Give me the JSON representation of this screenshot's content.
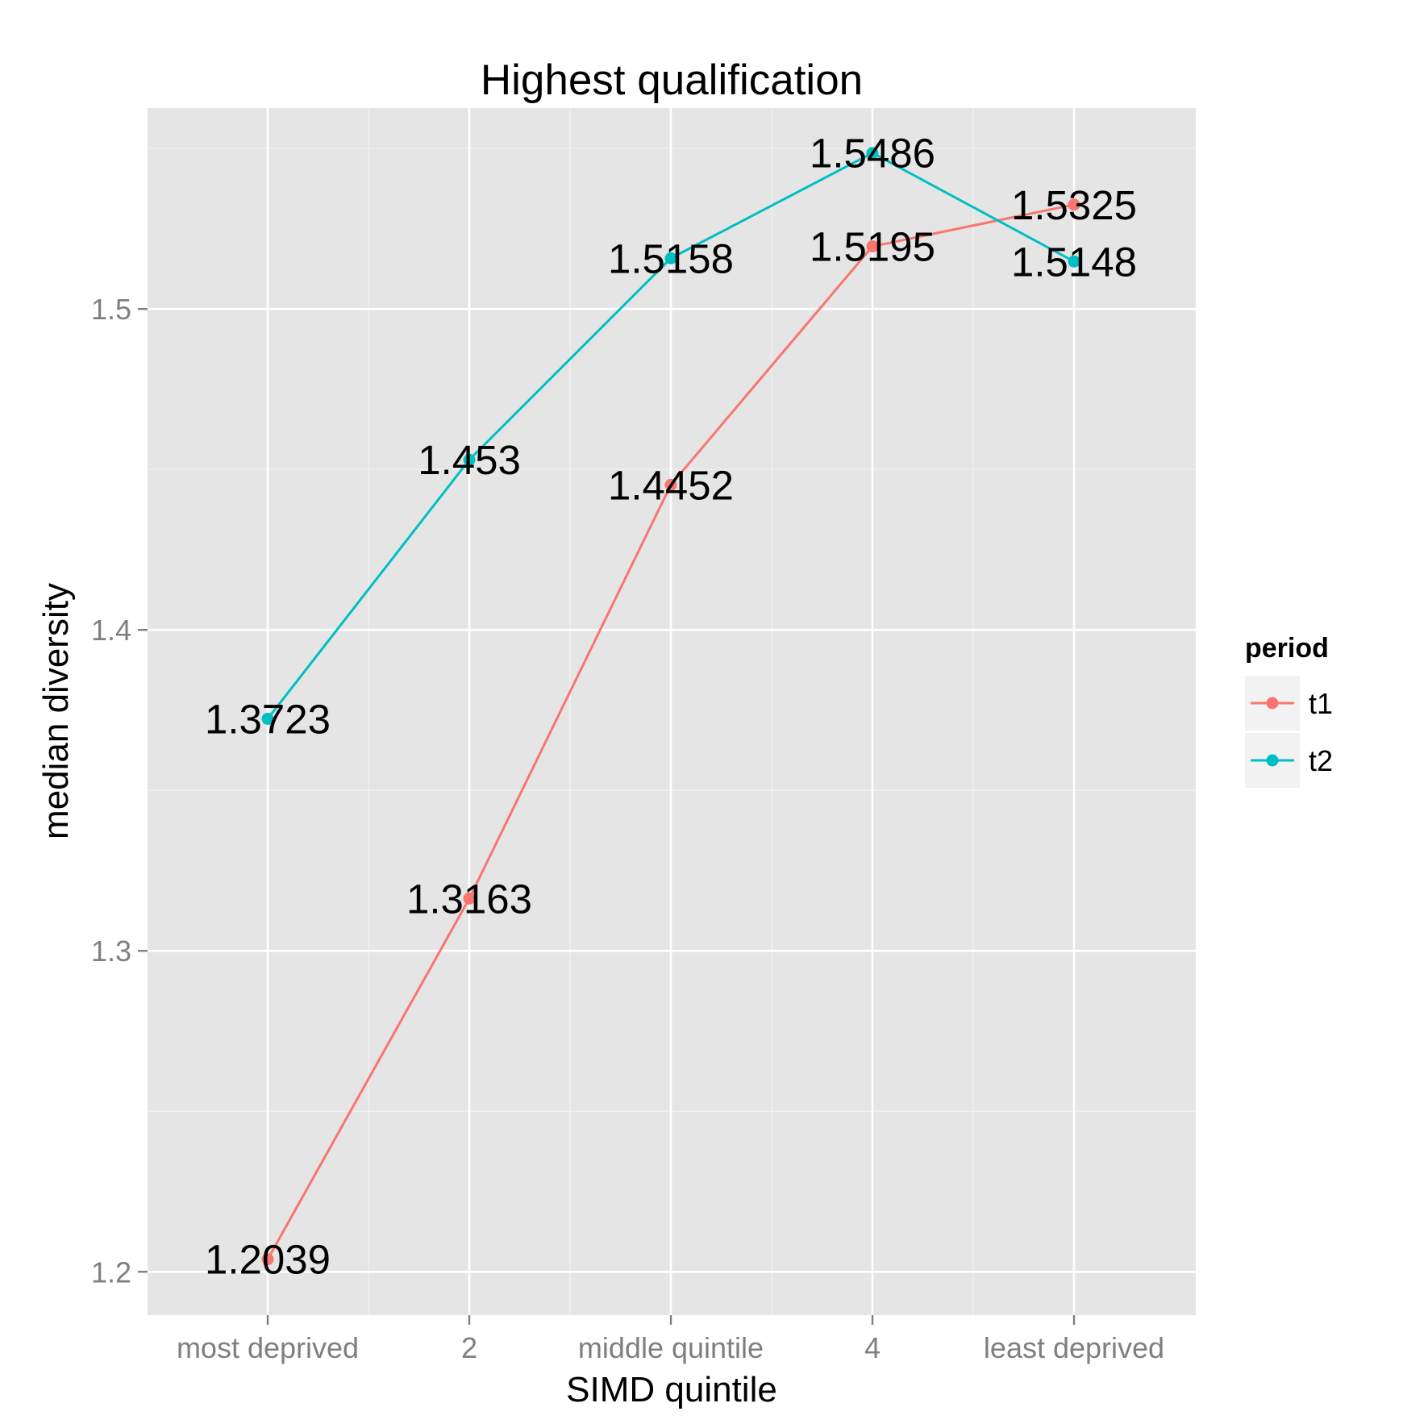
{
  "chart_data": {
    "type": "line",
    "title": "Highest qualification",
    "xlabel": "SIMD quintile",
    "ylabel": "median diversity",
    "categories": [
      "most deprived",
      "2",
      "middle quintile",
      "4",
      "least deprived"
    ],
    "y_ticks": [
      "1.2",
      "1.3",
      "1.4",
      "1.5"
    ],
    "y_tick_values": [
      1.2,
      1.3,
      1.4,
      1.5
    ],
    "ylim": [
      1.1865,
      1.5626
    ],
    "grid": true,
    "legend": {
      "title": "period",
      "position": "right"
    },
    "series": [
      {
        "name": "t1",
        "color": "#F8766D",
        "values": [
          1.2039,
          1.3163,
          1.4452,
          1.5195,
          1.5325
        ],
        "labels": [
          "1.2039",
          "1.3163",
          "1.4452",
          "1.5195",
          "1.5325"
        ]
      },
      {
        "name": "t2",
        "color": "#00BFC4",
        "values": [
          1.3723,
          1.453,
          1.5158,
          1.5486,
          1.5148
        ],
        "labels": [
          "1.3723",
          "1.453",
          "1.5158",
          "1.5486",
          "1.5148"
        ]
      }
    ]
  }
}
